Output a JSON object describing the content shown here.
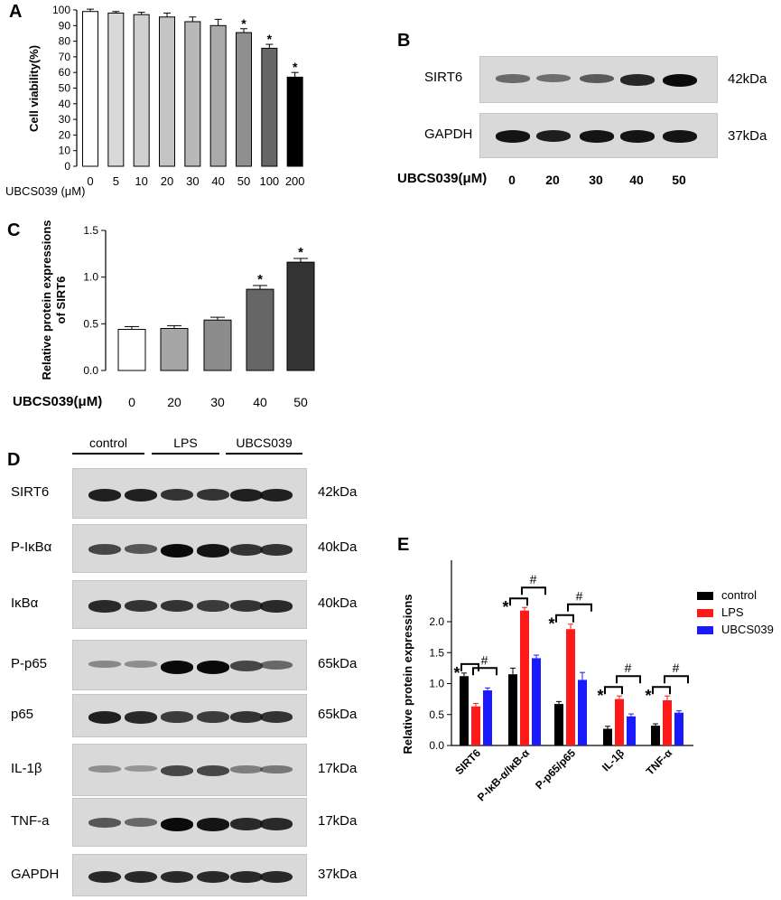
{
  "panels": {
    "A": {
      "letter": "A",
      "ylabel": "Cell viability(%)",
      "xaxis_prefix": "UBCS039",
      "xaxis_unit": "(μM)",
      "chart_data": {
        "type": "bar",
        "categories": [
          "0",
          "5",
          "10",
          "20",
          "30",
          "40",
          "50",
          "100",
          "200"
        ],
        "values": [
          99,
          98,
          97,
          95.5,
          92.5,
          90,
          85.5,
          75.5,
          57
        ],
        "errors": [
          1.5,
          1,
          1.5,
          2.5,
          3,
          4,
          2.5,
          2.5,
          3
        ],
        "significance": [
          "",
          "",
          "",
          "",
          "",
          "",
          "*",
          "*",
          "*"
        ],
        "bar_colors": [
          "#ffffff",
          "#d9d9d9",
          "#d0d0d0",
          "#c4c4c4",
          "#b8b8b8",
          "#aaaaaa",
          "#8f8f8f",
          "#666666",
          "#000000"
        ],
        "ylim": [
          0,
          100
        ],
        "yticks": [
          "0",
          "10",
          "20",
          "30",
          "40",
          "50",
          "60",
          "70",
          "80",
          "90",
          "100"
        ],
        "xlabel": "",
        "ylabel": "Cell viability(%)"
      }
    },
    "B": {
      "letter": "B",
      "rows": [
        {
          "name": "SIRT6",
          "kda": "42kDa",
          "intensities": [
            0.45,
            0.42,
            0.55,
            0.85,
            1.0
          ]
        },
        {
          "name": "GAPDH",
          "kda": "37kDa",
          "intensities": [
            0.95,
            0.9,
            0.95,
            0.95,
            0.95
          ]
        }
      ],
      "xaxis_label": "UBCS039(μM)",
      "lanes": [
        "0",
        "20",
        "30",
        "40",
        "50"
      ]
    },
    "C": {
      "letter": "C",
      "ylabel_line1": "Relative protein expressions",
      "ylabel_line2": "of SIRT6",
      "xaxis_label": "UBCS039(μM)",
      "chart_data": {
        "type": "bar",
        "categories": [
          "0",
          "20",
          "30",
          "40",
          "50"
        ],
        "values": [
          0.44,
          0.45,
          0.54,
          0.87,
          1.16
        ],
        "errors": [
          0.03,
          0.03,
          0.03,
          0.04,
          0.04
        ],
        "significance": [
          "",
          "",
          "",
          "*",
          "*"
        ],
        "bar_colors": [
          "#ffffff",
          "#a6a6a6",
          "#8c8c8c",
          "#666666",
          "#333333"
        ],
        "ylim": [
          0,
          1.5
        ],
        "yticks": [
          "0.0",
          "0.5",
          "1.0",
          "1.5"
        ],
        "ylabel": "Relative protein expressions of SIRT6",
        "xlabel": "UBCS039(μM)"
      }
    },
    "D": {
      "letter": "D",
      "groups": [
        "control",
        "LPS",
        "UBCS039"
      ],
      "rows": [
        {
          "name": "SIRT6",
          "kda": "42kDa",
          "intensities": [
            0.9,
            0.9,
            0.8,
            0.8,
            0.9,
            0.9
          ]
        },
        {
          "name": "P-IκBα",
          "kda": "40kDa",
          "intensities": [
            0.7,
            0.6,
            1.0,
            0.95,
            0.8,
            0.8
          ]
        },
        {
          "name": "IκBα",
          "kda": "40kDa",
          "intensities": [
            0.85,
            0.8,
            0.8,
            0.75,
            0.8,
            0.85
          ]
        },
        {
          "name": "P-p65",
          "kda": "65kDa",
          "intensities": [
            0.3,
            0.25,
            1.0,
            1.0,
            0.7,
            0.5
          ]
        },
        {
          "name": "p65",
          "kda": "65kDa",
          "intensities": [
            0.9,
            0.85,
            0.75,
            0.75,
            0.8,
            0.8
          ]
        },
        {
          "name": "IL-1β",
          "kda": "17kDa",
          "intensities": [
            0.25,
            0.2,
            0.7,
            0.7,
            0.35,
            0.4
          ]
        },
        {
          "name": "TNF-a",
          "kda": "17kDa",
          "intensities": [
            0.6,
            0.5,
            1.0,
            0.95,
            0.85,
            0.85
          ]
        },
        {
          "name": "GAPDH",
          "kda": "37kDa",
          "intensities": [
            0.85,
            0.85,
            0.85,
            0.85,
            0.85,
            0.85
          ]
        }
      ]
    },
    "E": {
      "letter": "E",
      "ylabel": "Relative protein expressions",
      "legend": [
        {
          "name": "control",
          "color": "#000000"
        },
        {
          "name": "LPS",
          "color": "#ff1a1a"
        },
        {
          "name": "UBCS039",
          "color": "#1a1aff"
        }
      ],
      "chart_data": {
        "type": "bar",
        "categories": [
          "SIRT6",
          "P-IκB-α/IκB-α",
          "P-p65/p65",
          "IL-1β",
          "TNF-α"
        ],
        "series": [
          {
            "name": "control",
            "values": [
              1.12,
              1.15,
              0.67,
              0.27,
              0.32
            ],
            "errors": [
              0.05,
              0.1,
              0.04,
              0.04,
              0.03
            ]
          },
          {
            "name": "LPS",
            "values": [
              0.63,
              2.18,
              1.88,
              0.75,
              0.73
            ],
            "errors": [
              0.05,
              0.05,
              0.08,
              0.05,
              0.07
            ]
          },
          {
            "name": "UBCS039",
            "values": [
              0.89,
              1.41,
              1.06,
              0.47,
              0.53
            ],
            "errors": [
              0.04,
              0.05,
              0.12,
              0.04,
              0.03
            ]
          }
        ],
        "ylim": [
          0,
          2.5
        ],
        "yticks": [
          "0.0",
          "0.5",
          "1.0",
          "1.5",
          "2.0"
        ],
        "ylabel": "Relative protein expressions",
        "significance_star": "*",
        "significance_hash": "#",
        "legend_position": "right"
      }
    }
  }
}
